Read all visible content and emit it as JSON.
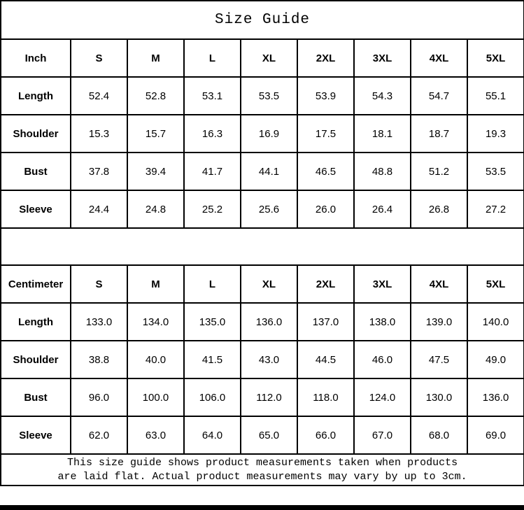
{
  "title": "Size Guide",
  "chart_data": [
    {
      "type": "table",
      "unit": "Inch",
      "sizes": [
        "S",
        "M",
        "L",
        "XL",
        "2XL",
        "3XL",
        "4XL",
        "5XL"
      ],
      "rows": [
        {
          "label": "Length",
          "values": [
            "52.4",
            "52.8",
            "53.1",
            "53.5",
            "53.9",
            "54.3",
            "54.7",
            "55.1"
          ]
        },
        {
          "label": "Shoulder",
          "values": [
            "15.3",
            "15.7",
            "16.3",
            "16.9",
            "17.5",
            "18.1",
            "18.7",
            "19.3"
          ]
        },
        {
          "label": "Bust",
          "values": [
            "37.8",
            "39.4",
            "41.7",
            "44.1",
            "46.5",
            "48.8",
            "51.2",
            "53.5"
          ]
        },
        {
          "label": "Sleeve",
          "values": [
            "24.4",
            "24.8",
            "25.2",
            "25.6",
            "26.0",
            "26.4",
            "26.8",
            "27.2"
          ]
        }
      ]
    },
    {
      "type": "table",
      "unit": "Centimeter",
      "sizes": [
        "S",
        "M",
        "L",
        "XL",
        "2XL",
        "3XL",
        "4XL",
        "5XL"
      ],
      "rows": [
        {
          "label": "Length",
          "values": [
            "133.0",
            "134.0",
            "135.0",
            "136.0",
            "137.0",
            "138.0",
            "139.0",
            "140.0"
          ]
        },
        {
          "label": "Shoulder",
          "values": [
            "38.8",
            "40.0",
            "41.5",
            "43.0",
            "44.5",
            "46.0",
            "47.5",
            "49.0"
          ]
        },
        {
          "label": "Bust",
          "values": [
            "96.0",
            "100.0",
            "106.0",
            "112.0",
            "118.0",
            "124.0",
            "130.0",
            "136.0"
          ]
        },
        {
          "label": "Sleeve",
          "values": [
            "62.0",
            "63.0",
            "64.0",
            "65.0",
            "66.0",
            "67.0",
            "68.0",
            "69.0"
          ]
        }
      ]
    }
  ],
  "footer": {
    "line1": "This size guide shows product measurements taken when products",
    "line2": "are laid flat. Actual product measurements may vary by up to 3cm."
  },
  "colors": {
    "border": "#000000",
    "background": "#ffffff",
    "text": "#000000",
    "bottom_bar": "#000000"
  }
}
